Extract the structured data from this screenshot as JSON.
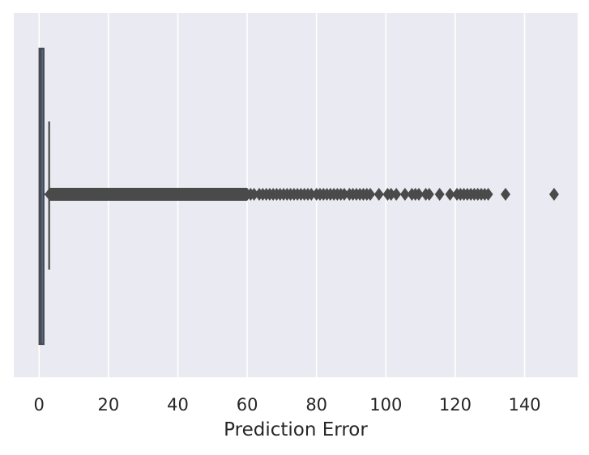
{
  "chart_data": {
    "type": "box",
    "orientation": "horizontal",
    "title": "",
    "xlabel": "Prediction Error",
    "ylabel": "",
    "xlim": [
      -7.3,
      155.3
    ],
    "xticks": [
      0,
      20,
      40,
      60,
      80,
      100,
      120,
      140
    ],
    "xtick_labels": [
      "0",
      "20",
      "40",
      "60",
      "80",
      "100",
      "120",
      "140"
    ],
    "grid": true,
    "colors": {
      "plot_background": "#EAEAF2",
      "gridline": "#FFFFFF",
      "box_fill": "#4C72B0",
      "box_edge": "#4A4A4A",
      "text": "#262626"
    },
    "box": {
      "min": 0.0,
      "q1": 0.1,
      "median": 0.5,
      "q3": 1.3,
      "whisker_low": 0.0,
      "whisker_high": 2.9,
      "outlier_range": [
        3.0,
        60.0
      ],
      "outliers": [
        61,
        62,
        63.5,
        64.5,
        65.5,
        66.5,
        67.5,
        68.5,
        69.5,
        70.5,
        71.5,
        72.5,
        73.5,
        74.5,
        75.5,
        76.5,
        77.5,
        78.5,
        80,
        81,
        82,
        83,
        84,
        85,
        86,
        87,
        88,
        89.5,
        90.5,
        91.5,
        92.5,
        93.5,
        94.5,
        95.5,
        98,
        100.5,
        101.5,
        103,
        105.5,
        107.5,
        108.5,
        109.5,
        111.5,
        112.5,
        115.5,
        118.5,
        120.5,
        121.5,
        122.5,
        123.5,
        124.5,
        125.5,
        126.5,
        127.5,
        128.5,
        129.5,
        134.5,
        148.5
      ]
    }
  }
}
